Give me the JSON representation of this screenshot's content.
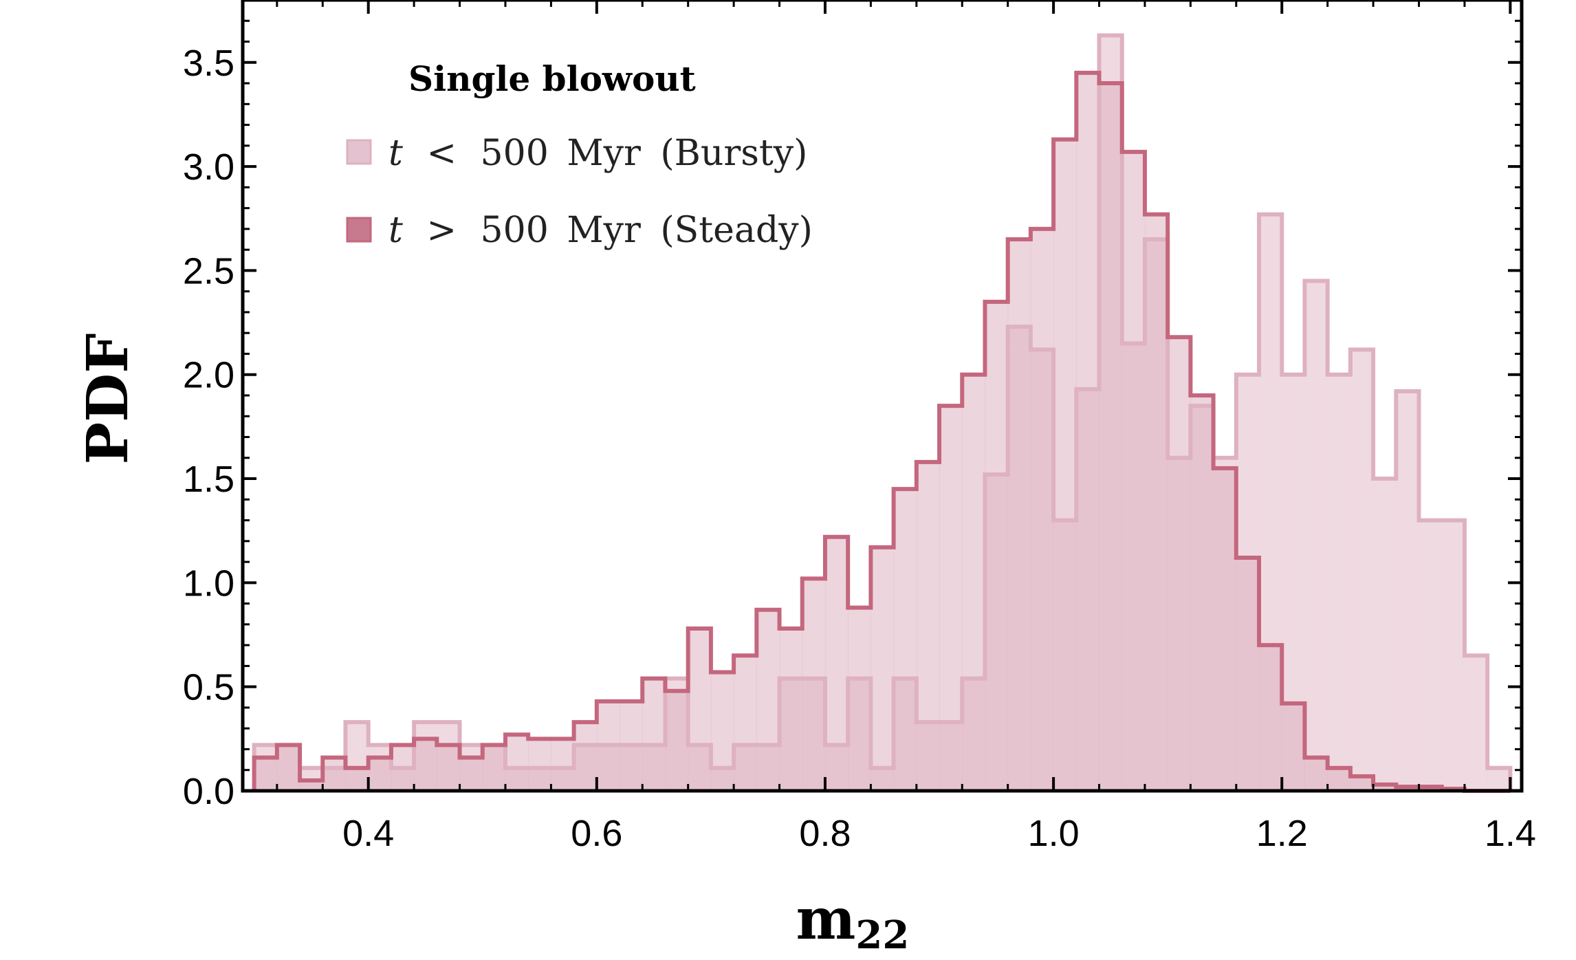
{
  "chart_data": {
    "type": "histogram",
    "xlabel": "m",
    "xlabel_sub": "22",
    "ylabel": "PDF",
    "xlim": [
      0.29,
      1.41
    ],
    "ylim": [
      0,
      3.8
    ],
    "xticks": [
      0.4,
      0.6,
      0.8,
      1.0,
      1.2,
      1.4
    ],
    "xtick_labels": [
      "0.4",
      "0.6",
      "0.8",
      "1.0",
      "1.2",
      "1.4"
    ],
    "yticks": [
      0.0,
      0.5,
      1.0,
      1.5,
      2.0,
      2.5,
      3.0,
      3.5
    ],
    "ytick_labels": [
      "0.0",
      "0.5",
      "1.0",
      "1.5",
      "2.0",
      "2.5",
      "3.0",
      "3.5"
    ],
    "legend": {
      "title": "Single blowout",
      "position": "top-left",
      "entries": [
        {
          "var": "t",
          "op": "<",
          "value": "500",
          "unit": "Myr",
          "label": "(Bursty)"
        },
        {
          "var": "t",
          "op": ">",
          "value": "500",
          "unit": "Myr",
          "label": "(Steady)"
        }
      ]
    },
    "series": [
      {
        "name": "t < 500 Myr (Bursty)",
        "fill": "#edd3dc",
        "stroke": "#deb1c1",
        "bin_edges": [
          0.3,
          0.32,
          0.34,
          0.36,
          0.38,
          0.4,
          0.42,
          0.44,
          0.46,
          0.48,
          0.5,
          0.52,
          0.54,
          0.56,
          0.58,
          0.6,
          0.62,
          0.64,
          0.66,
          0.68,
          0.7,
          0.72,
          0.74,
          0.76,
          0.78,
          0.8,
          0.82,
          0.84,
          0.86,
          0.88,
          0.9,
          0.92,
          0.94,
          0.96,
          0.98,
          1.0,
          1.02,
          1.04,
          1.06,
          1.08,
          1.1,
          1.12,
          1.14,
          1.16,
          1.18,
          1.2,
          1.22,
          1.24,
          1.26,
          1.28,
          1.3,
          1.32,
          1.34,
          1.36,
          1.38,
          1.4
        ],
        "values": [
          0.22,
          0.22,
          0.11,
          0.11,
          0.33,
          0.22,
          0.11,
          0.33,
          0.33,
          0.22,
          0.22,
          0.11,
          0.11,
          0.11,
          0.22,
          0.22,
          0.22,
          0.22,
          0.54,
          0.22,
          0.11,
          0.22,
          0.22,
          0.54,
          0.54,
          0.22,
          0.54,
          0.11,
          0.54,
          0.33,
          0.33,
          0.54,
          1.52,
          2.23,
          2.12,
          1.3,
          1.93,
          3.63,
          2.15,
          2.65,
          1.6,
          1.85,
          1.6,
          2.0,
          2.77,
          2.0,
          2.45,
          2.0,
          2.12,
          1.5,
          1.92,
          1.3,
          1.3,
          0.65,
          0.11
        ]
      },
      {
        "name": "t > 500 Myr (Steady)",
        "fill": "#dfb2c1",
        "stroke": "#c4677e",
        "bin_edges": [
          0.3,
          0.32,
          0.34,
          0.36,
          0.38,
          0.4,
          0.42,
          0.44,
          0.46,
          0.48,
          0.5,
          0.52,
          0.54,
          0.56,
          0.58,
          0.6,
          0.62,
          0.64,
          0.66,
          0.68,
          0.7,
          0.72,
          0.74,
          0.76,
          0.78,
          0.8,
          0.82,
          0.84,
          0.86,
          0.88,
          0.9,
          0.92,
          0.94,
          0.96,
          0.98,
          1.0,
          1.02,
          1.04,
          1.06,
          1.08,
          1.1,
          1.12,
          1.14,
          1.16,
          1.18,
          1.2,
          1.22,
          1.24,
          1.26,
          1.28,
          1.3,
          1.32,
          1.34,
          1.36,
          1.38,
          1.4
        ],
        "values": [
          0.16,
          0.22,
          0.05,
          0.16,
          0.11,
          0.16,
          0.22,
          0.25,
          0.22,
          0.16,
          0.22,
          0.27,
          0.25,
          0.25,
          0.33,
          0.43,
          0.43,
          0.54,
          0.48,
          0.78,
          0.57,
          0.65,
          0.87,
          0.78,
          1.02,
          1.22,
          0.88,
          1.17,
          1.45,
          1.58,
          1.85,
          2.0,
          2.35,
          2.65,
          2.7,
          3.13,
          3.45,
          3.4,
          3.07,
          2.77,
          2.18,
          1.9,
          1.55,
          1.12,
          0.7,
          0.42,
          0.16,
          0.11,
          0.07,
          0.03,
          0.02,
          0.02,
          0.01,
          0,
          0
        ]
      }
    ]
  }
}
